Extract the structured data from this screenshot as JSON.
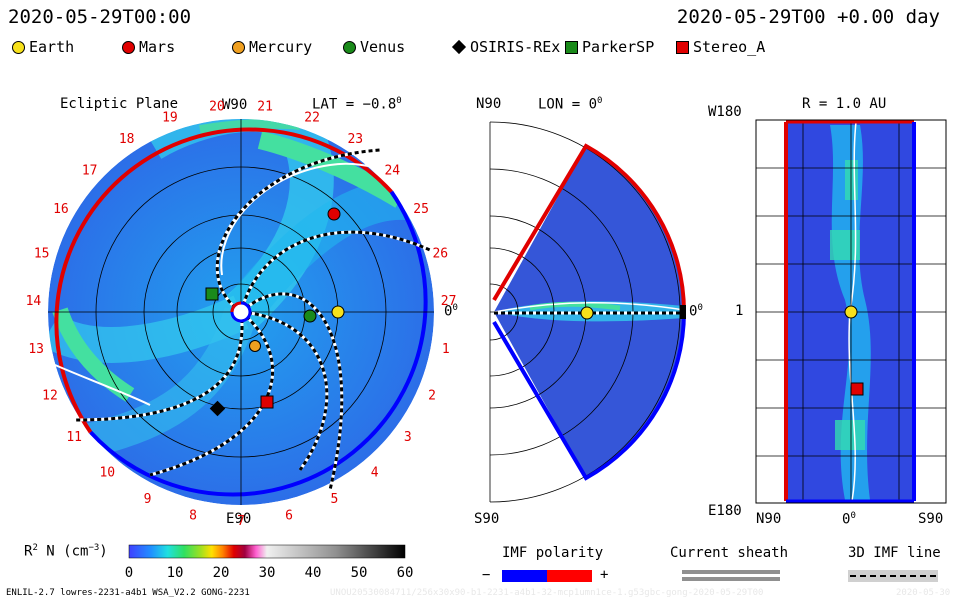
{
  "header": {
    "date_left": "2020-05-29T00:00",
    "date_right": "2020-05-29T00 +0.00 day"
  },
  "legend": [
    {
      "label": "Earth",
      "shape": "circle",
      "color": "#f7e11b"
    },
    {
      "label": "Mars",
      "shape": "circle",
      "color": "#e00000"
    },
    {
      "label": "Mercury",
      "shape": "circle",
      "color": "#f0a020"
    },
    {
      "label": "Venus",
      "shape": "circle",
      "color": "#1a8a1a"
    },
    {
      "label": "OSIRIS-REx",
      "shape": "diamond",
      "color": "#000000"
    },
    {
      "label": "ParkerSP",
      "shape": "square",
      "color": "#1a8a1a"
    },
    {
      "label": "Stereo_A",
      "shape": "square",
      "color": "#e00000"
    }
  ],
  "ecliptic_panel": {
    "title": "Ecliptic Plane",
    "lat_label": "LAT = −0.8",
    "lat_sup": "0",
    "top_label": "W90",
    "bottom_label": "E90",
    "right_label": "0",
    "right_sup": "0",
    "sector_numbers": [
      "19",
      "20",
      "21",
      "22",
      "23",
      "24",
      "25",
      "26",
      "27",
      "1",
      "2",
      "3",
      "4",
      "5",
      "6",
      "7",
      "8",
      "9",
      "10",
      "11",
      "12",
      "13",
      "14",
      "15",
      "16",
      "17",
      "18"
    ]
  },
  "meridional_panel": {
    "top_left_label": "N90",
    "lon_label": "LON = 0",
    "lon_sup": "0",
    "right_label": "0",
    "right_sup": "0",
    "bottom_label": "S90"
  },
  "radial_panel": {
    "r_label": "R = 1.0 AU",
    "y_top": "W180",
    "y_mid": "1",
    "y_bottom": "E180",
    "x_left": "N90",
    "x_mid": "0",
    "x_mid_sup": "0",
    "x_right": "S90"
  },
  "colorbar": {
    "label_main": "R",
    "label_sup": "2",
    "label_rest": " N (cm",
    "label_exp": "−3",
    "label_close": ")",
    "ticks": [
      "0",
      "10",
      "20",
      "30",
      "40",
      "50",
      "60"
    ],
    "range": [
      0,
      60
    ]
  },
  "imf_polarity": {
    "title": "IMF polarity",
    "minus": "−",
    "plus": "+",
    "neg_color": "#0000ff",
    "pos_color": "#ff0000"
  },
  "current_sheath": {
    "title": "Current sheath"
  },
  "imf_line": {
    "title": "3D IMF line"
  },
  "footer": {
    "model": "ENLIL-2.7 lowres-2231-a4b1 WSA_V2.2 GONG-2231",
    "run_id": "UNOU20530084711/256x30x90-b1-2231-a4b1-32-mcp1umn1ce-1.g53gbc-gong-2020-05-29T00",
    "right_code": "2020-05-30"
  },
  "colors": {
    "background_density": "#3355ee",
    "mid_density": "#22aaee",
    "high_density": "#33e8b0",
    "peak_density": "#aaf0c0"
  }
}
